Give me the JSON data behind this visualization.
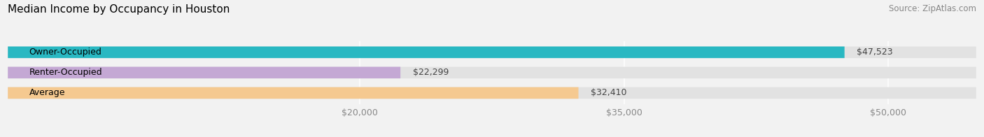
{
  "title": "Median Income by Occupancy in Houston",
  "source": "Source: ZipAtlas.com",
  "categories": [
    "Owner-Occupied",
    "Renter-Occupied",
    "Average"
  ],
  "values": [
    47523,
    22299,
    32410
  ],
  "labels": [
    "$47,523",
    "$22,299",
    "$32,410"
  ],
  "bar_colors": [
    "#29b8c2",
    "#c4a8d4",
    "#f5c990"
  ],
  "xlim": [
    0,
    55000
  ],
  "xticks": [
    20000,
    35000,
    50000
  ],
  "xticklabels": [
    "$20,000",
    "$35,000",
    "$50,000"
  ],
  "bar_height": 0.55,
  "bg_color": "#f2f2f2",
  "bar_bg_color": "#e2e2e2",
  "title_fontsize": 11,
  "source_fontsize": 8.5,
  "label_fontsize": 9,
  "tick_fontsize": 9
}
